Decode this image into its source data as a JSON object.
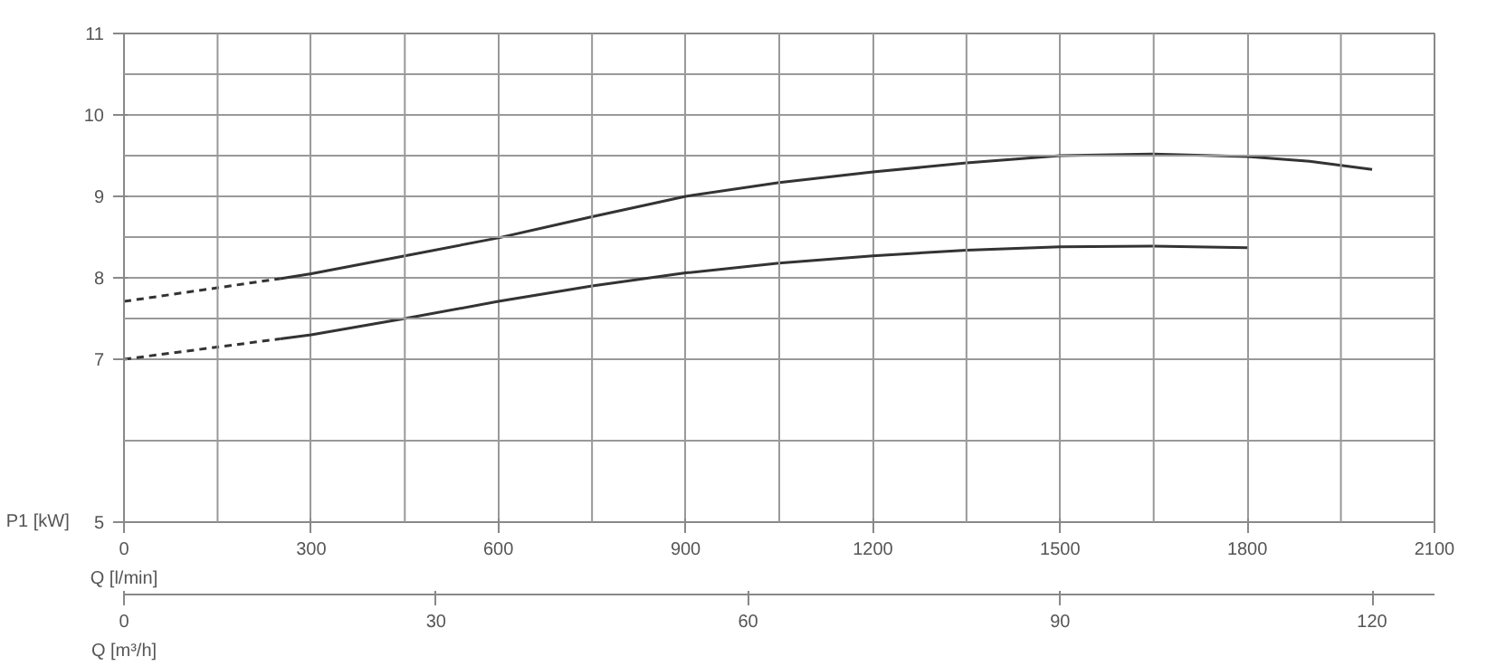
{
  "chart_data": {
    "type": "line",
    "xlabel": "Q [l/min]",
    "ylabel": "P1 [kW]",
    "x2label": "Q [m³/h]",
    "xlim": [
      0,
      2100
    ],
    "xticks": [
      0,
      300,
      600,
      900,
      1200,
      1500,
      1800,
      2100
    ],
    "ylim": [
      5,
      11
    ],
    "yticks": [
      5,
      7,
      8,
      9,
      10,
      11
    ],
    "x2lim": [
      0,
      126
    ],
    "x2ticks": [
      0,
      30,
      60,
      90,
      120
    ],
    "grid": true,
    "line_style": "solid",
    "series": [
      {
        "color": "#333333",
        "line_style": "dashed",
        "x": [
          0,
          250
        ],
        "values": [
          7.71,
          7.99
        ]
      },
      {
        "color": "#333333",
        "x": [
          250,
          300,
          450,
          600,
          750,
          900,
          1050,
          1200,
          1350,
          1500,
          1650,
          1800,
          1900,
          2000
        ],
        "values": [
          7.99,
          8.05,
          8.27,
          8.49,
          8.75,
          9.0,
          9.17,
          9.3,
          9.41,
          9.5,
          9.52,
          9.49,
          9.43,
          9.33
        ]
      },
      {
        "color": "#333333",
        "line_style": "dashed",
        "x": [
          0,
          250
        ],
        "values": [
          7.0,
          7.25
        ]
      },
      {
        "color": "#333333",
        "x": [
          250,
          300,
          450,
          600,
          750,
          900,
          1050,
          1200,
          1350,
          1500,
          1650,
          1800
        ],
        "values": [
          7.25,
          7.3,
          7.5,
          7.71,
          7.9,
          8.06,
          8.18,
          8.27,
          8.34,
          8.38,
          8.39,
          8.37
        ]
      }
    ]
  }
}
